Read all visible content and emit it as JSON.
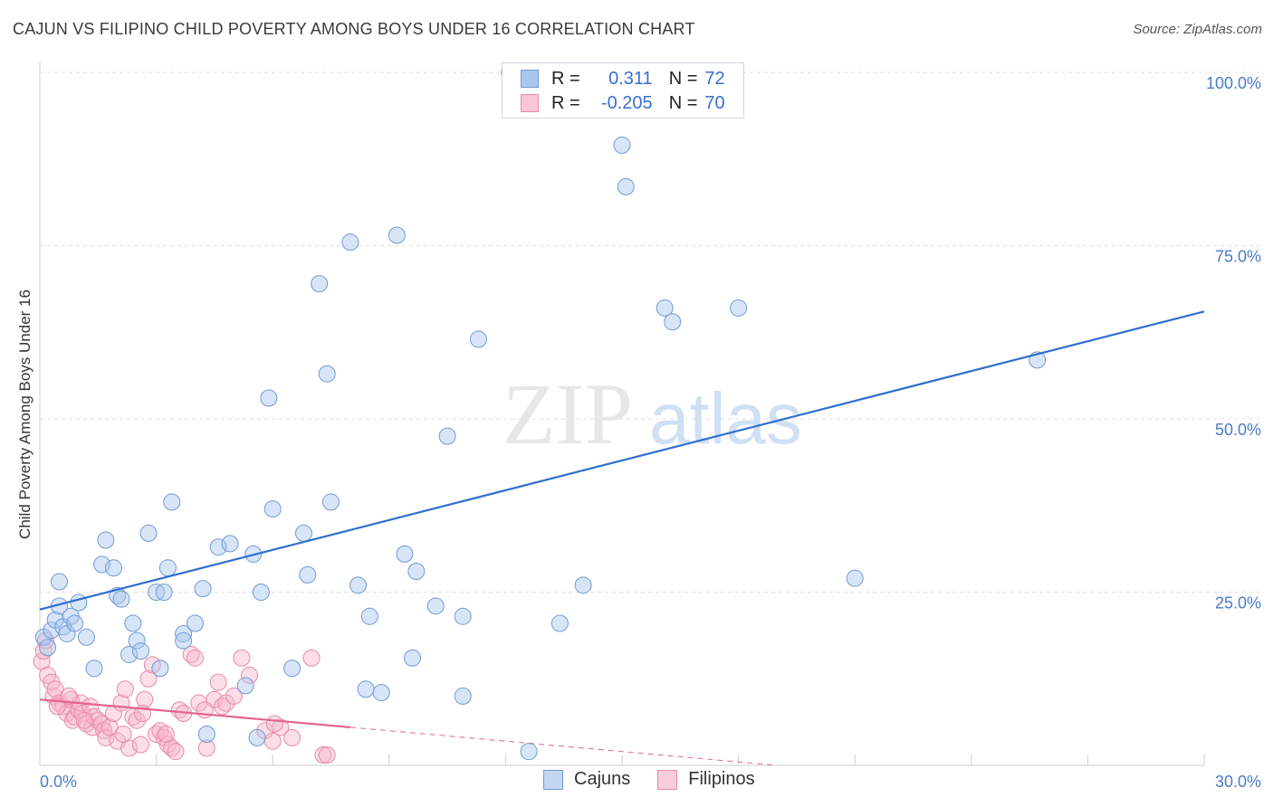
{
  "title": "CAJUN VS FILIPINO CHILD POVERTY AMONG BOYS UNDER 16 CORRELATION CHART",
  "source": "Source: ZipAtlas.com",
  "watermark": {
    "zip": "ZIP",
    "atlas": "atlas"
  },
  "legend": {
    "rows": [
      {
        "r_label": "R =",
        "r_value": "0.311",
        "n_label": "N =",
        "n_value": "72"
      },
      {
        "r_label": "R =",
        "r_value": "-0.205",
        "n_label": "N =",
        "n_value": "70"
      }
    ]
  },
  "bottom_legend": {
    "cajuns": "Cajuns",
    "filipinos": "Filipinos"
  },
  "colors": {
    "cajun_fill": "#a9c6ee",
    "cajun_stroke": "#6f9bd6",
    "cajun_line": "#2f6fcd",
    "filipino_fill": "#f6b6c9",
    "filipino_stroke": "#e98aa7",
    "filipino_line": "#e5638f",
    "tick": "#4a7cc7",
    "grid": "#e0e0e0"
  },
  "chart_data": {
    "type": "scatter",
    "title": "CAJUN VS FILIPINO CHILD POVERTY AMONG BOYS UNDER 16 CORRELATION CHART",
    "xlabel": "",
    "ylabel": "Child Poverty Among Boys Under 16",
    "xlim": [
      0,
      30
    ],
    "ylim": [
      0,
      100
    ],
    "x_tick_labels": [
      "0.0%",
      "30.0%"
    ],
    "y_tick_labels": [
      {
        "value": 25,
        "label": "25.0%"
      },
      {
        "value": 50,
        "label": "50.0%"
      },
      {
        "value": 75,
        "label": "75.0%"
      },
      {
        "value": 100,
        "label": "100.0%"
      }
    ],
    "series": [
      {
        "name": "Cajuns",
        "r": 0.311,
        "n": 72,
        "trend": {
          "x": [
            0,
            30
          ],
          "y": [
            22.5,
            65.5
          ],
          "style": "solid"
        },
        "points": [
          [
            0.1,
            18.5
          ],
          [
            0.2,
            17
          ],
          [
            0.3,
            19.5
          ],
          [
            0.4,
            21
          ],
          [
            0.5,
            23
          ],
          [
            0.5,
            26.5
          ],
          [
            0.6,
            20
          ],
          [
            0.7,
            19
          ],
          [
            0.8,
            21.5
          ],
          [
            0.9,
            20.5
          ],
          [
            1.0,
            23.5
          ],
          [
            1.2,
            18.5
          ],
          [
            1.4,
            14
          ],
          [
            1.6,
            29
          ],
          [
            1.7,
            32.5
          ],
          [
            1.9,
            28.5
          ],
          [
            2.0,
            24.5
          ],
          [
            2.1,
            24
          ],
          [
            2.3,
            16
          ],
          [
            2.4,
            20.5
          ],
          [
            2.5,
            18
          ],
          [
            2.6,
            16.5
          ],
          [
            2.8,
            33.5
          ],
          [
            3.0,
            25
          ],
          [
            3.1,
            14
          ],
          [
            3.2,
            25
          ],
          [
            3.3,
            28.5
          ],
          [
            3.4,
            38
          ],
          [
            3.7,
            19
          ],
          [
            3.7,
            18
          ],
          [
            4.0,
            20.5
          ],
          [
            4.2,
            25.5
          ],
          [
            4.6,
            31.5
          ],
          [
            4.9,
            32
          ],
          [
            5.3,
            11.5
          ],
          [
            5.5,
            30.5
          ],
          [
            5.7,
            25
          ],
          [
            5.9,
            53
          ],
          [
            6.0,
            37
          ],
          [
            6.5,
            14
          ],
          [
            6.8,
            33.5
          ],
          [
            6.9,
            27.5
          ],
          [
            7.2,
            69.5
          ],
          [
            7.4,
            56.5
          ],
          [
            7.5,
            38
          ],
          [
            8.0,
            75.5
          ],
          [
            8.2,
            26
          ],
          [
            8.4,
            11
          ],
          [
            8.5,
            21.5
          ],
          [
            8.8,
            10.5
          ],
          [
            9.2,
            76.5
          ],
          [
            9.4,
            30.5
          ],
          [
            9.6,
            15.5
          ],
          [
            9.7,
            28
          ],
          [
            10.2,
            23
          ],
          [
            10.5,
            47.5
          ],
          [
            10.9,
            21.5
          ],
          [
            10.9,
            10
          ],
          [
            11.3,
            61.5
          ],
          [
            12.1,
            100
          ],
          [
            12.6,
            2
          ],
          [
            13.4,
            20.5
          ],
          [
            14.0,
            26
          ],
          [
            15.0,
            89.5
          ],
          [
            15.1,
            83.5
          ],
          [
            16.1,
            66
          ],
          [
            16.3,
            64
          ],
          [
            18.0,
            66
          ],
          [
            21.0,
            27
          ],
          [
            25.7,
            58.5
          ],
          [
            4.3,
            4.5
          ],
          [
            5.6,
            4
          ]
        ]
      },
      {
        "name": "Filipinos",
        "r": -0.205,
        "n": 70,
        "trend": {
          "x": [
            0,
            8
          ],
          "y": [
            9.5,
            5.5
          ],
          "style": "solid",
          "dashed_extension": {
            "x": [
              8,
              19
            ],
            "y": [
              5.5,
              0
            ]
          }
        },
        "points": [
          [
            0.05,
            15
          ],
          [
            0.1,
            16.5
          ],
          [
            0.15,
            18
          ],
          [
            0.2,
            13
          ],
          [
            0.3,
            12
          ],
          [
            0.35,
            10
          ],
          [
            0.4,
            11
          ],
          [
            0.5,
            9
          ],
          [
            0.6,
            8.5
          ],
          [
            0.7,
            7.5
          ],
          [
            0.8,
            9.5
          ],
          [
            0.85,
            6.5
          ],
          [
            0.9,
            7
          ],
          [
            1.0,
            8
          ],
          [
            1.05,
            9
          ],
          [
            1.1,
            7.5
          ],
          [
            1.2,
            6
          ],
          [
            1.3,
            8.5
          ],
          [
            1.35,
            5.5
          ],
          [
            1.4,
            7
          ],
          [
            1.5,
            6.5
          ],
          [
            1.6,
            6
          ],
          [
            1.65,
            5
          ],
          [
            1.7,
            4
          ],
          [
            1.8,
            5.5
          ],
          [
            1.9,
            7.5
          ],
          [
            2.0,
            3.5
          ],
          [
            2.1,
            9
          ],
          [
            2.2,
            11
          ],
          [
            2.3,
            2.5
          ],
          [
            2.4,
            7
          ],
          [
            2.5,
            6.5
          ],
          [
            2.6,
            3
          ],
          [
            2.7,
            9.5
          ],
          [
            2.8,
            12.5
          ],
          [
            2.9,
            14.5
          ],
          [
            3.0,
            4.5
          ],
          [
            3.1,
            5
          ],
          [
            3.2,
            4
          ],
          [
            3.3,
            3
          ],
          [
            3.4,
            2.5
          ],
          [
            3.5,
            2
          ],
          [
            3.6,
            8
          ],
          [
            3.7,
            7.5
          ],
          [
            3.9,
            16
          ],
          [
            4.0,
            15.5
          ],
          [
            4.1,
            9
          ],
          [
            4.3,
            2.5
          ],
          [
            4.5,
            9.5
          ],
          [
            4.6,
            12
          ],
          [
            4.7,
            8.5
          ],
          [
            4.8,
            9
          ],
          [
            5.0,
            10
          ],
          [
            5.2,
            15.5
          ],
          [
            5.4,
            13
          ],
          [
            5.8,
            5
          ],
          [
            6.0,
            3.5
          ],
          [
            6.2,
            5.5
          ],
          [
            6.5,
            4
          ],
          [
            7.0,
            15.5
          ],
          [
            7.3,
            1.5
          ],
          [
            7.4,
            1.5
          ],
          [
            0.45,
            8.5
          ],
          [
            0.75,
            10
          ],
          [
            1.15,
            6.5
          ],
          [
            2.15,
            4.5
          ],
          [
            3.25,
            4.5
          ],
          [
            4.25,
            8
          ],
          [
            6.05,
            6
          ],
          [
            2.65,
            7.5
          ]
        ]
      }
    ]
  }
}
